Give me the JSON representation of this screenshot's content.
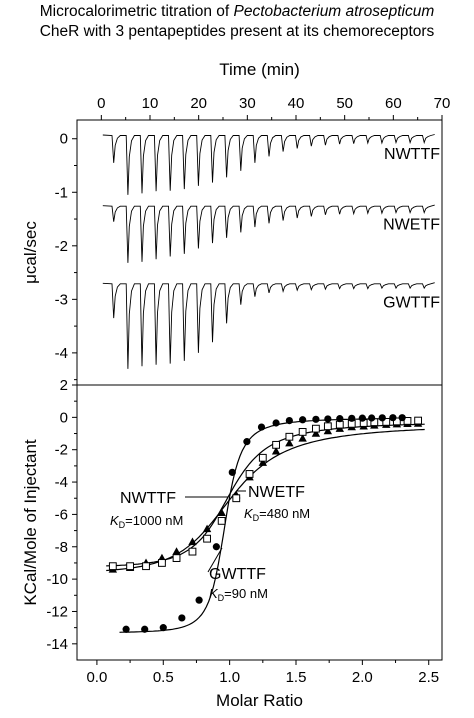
{
  "title": {
    "line1_prefix": "Microcalorimetric titration of ",
    "line1_italic": "Pectobacterium atrosepticum",
    "line2": "CheR with 3 pentapeptides present at its chemoreceptors"
  },
  "chart_data": [
    {
      "type": "line",
      "panel": "top",
      "description_text": "raw ITC thermograms",
      "xlabel": "Time (min)",
      "ylabel": "μcal/sec",
      "xlim": [
        -5,
        70
      ],
      "ylim": [
        -4.6,
        0.35
      ],
      "xticks": [
        0,
        10,
        20,
        30,
        40,
        50,
        60,
        70
      ],
      "yticks": [
        0,
        -1,
        -2,
        -3,
        -4
      ],
      "injection_times_min": [
        2.3,
        5.2,
        8.1,
        11.0,
        13.9,
        16.8,
        19.7,
        22.6,
        25.5,
        28.4,
        31.3,
        34.2,
        37.1,
        40.0,
        42.9,
        45.8,
        48.7,
        51.6,
        54.5,
        57.4,
        60.3,
        63.2,
        66.1
      ],
      "series": [
        {
          "name": "NWTTF",
          "baseline": 0.05,
          "peak_minima": [
            -0.45,
            -1.05,
            -1.02,
            -0.98,
            -0.97,
            -0.94,
            -0.88,
            -0.82,
            -0.72,
            -0.6,
            -0.45,
            -0.33,
            -0.24,
            -0.18,
            -0.14,
            -0.12,
            -0.1,
            -0.09,
            -0.08,
            -0.08,
            -0.07,
            -0.07,
            -0.07
          ]
        },
        {
          "name": "NWETF",
          "baseline": -1.27,
          "peak_minima": [
            -1.55,
            -2.32,
            -2.3,
            -2.25,
            -2.2,
            -2.15,
            -2.05,
            -1.95,
            -1.85,
            -1.75,
            -1.65,
            -1.58,
            -1.53,
            -1.48,
            -1.45,
            -1.42,
            -1.41,
            -1.4,
            -1.39,
            -1.39,
            -1.38,
            -1.38,
            -1.38
          ]
        },
        {
          "name": "GWTTF",
          "baseline": -2.72,
          "peak_minima": [
            -3.35,
            -4.3,
            -4.25,
            -4.22,
            -4.2,
            -4.15,
            -4.0,
            -3.8,
            -3.45,
            -3.1,
            -2.95,
            -2.88,
            -2.85,
            -2.83,
            -2.82,
            -2.81,
            -2.8,
            -2.8,
            -2.8,
            -2.79,
            -2.79,
            -2.79,
            -2.79
          ]
        }
      ]
    },
    {
      "type": "scatter",
      "panel": "bottom",
      "description_text": "integrated heats with fitted curves",
      "xlabel": "Molar Ratio",
      "ylabel": "KCal/Mole of Injectant",
      "xlim": [
        -0.15,
        2.6
      ],
      "ylim": [
        -15,
        2
      ],
      "xticks": [
        "0.0",
        "0.5",
        "1.0",
        "1.5",
        "2.0",
        "2.5"
      ],
      "yticks": [
        "2",
        "0",
        "-2",
        "-4",
        "-6",
        "-8",
        "-10",
        "-12",
        "-14"
      ],
      "series": [
        {
          "name": "NWTTF",
          "kd_label_prefix": "K",
          "kd_label_sub": "D",
          "kd_label_suffix": "=1000 nM",
          "marker": "filled-triangle",
          "fit": {
            "n": 0.97,
            "dh": -9.2,
            "ka": 1000000.0,
            "offset": -0.3
          },
          "x": [
            0.12,
            0.25,
            0.37,
            0.49,
            0.6,
            0.72,
            0.83,
            0.94,
            1.05,
            1.15,
            1.25,
            1.35,
            1.45,
            1.55,
            1.65,
            1.74,
            1.83,
            1.92,
            2.01,
            2.09,
            2.18,
            2.26,
            2.34,
            2.42
          ],
          "y": [
            -9.4,
            -9.3,
            -9.0,
            -8.7,
            -8.3,
            -7.7,
            -6.9,
            -5.9,
            -4.8,
            -3.7,
            -2.8,
            -2.1,
            -1.6,
            -1.3,
            -1.0,
            -0.85,
            -0.7,
            -0.6,
            -0.55,
            -0.5,
            -0.45,
            -0.42,
            -0.4,
            -0.38
          ]
        },
        {
          "name": "NWETF",
          "kd_label_prefix": "K",
          "kd_label_sub": "D",
          "kd_label_suffix": "=480 nM",
          "marker": "open-square",
          "fit": {
            "n": 0.98,
            "dh": -9.0,
            "ka": 2083333.0,
            "offset": -0.2
          },
          "x": [
            0.12,
            0.25,
            0.37,
            0.49,
            0.6,
            0.72,
            0.83,
            0.94,
            1.05,
            1.15,
            1.25,
            1.35,
            1.45,
            1.55,
            1.65,
            1.74,
            1.83,
            1.92,
            2.01,
            2.09,
            2.18,
            2.26,
            2.34,
            2.42
          ],
          "y": [
            -9.2,
            -9.2,
            -9.2,
            -9.0,
            -8.7,
            -8.3,
            -7.5,
            -6.4,
            -5.0,
            -3.5,
            -2.5,
            -1.7,
            -1.2,
            -0.9,
            -0.7,
            -0.55,
            -0.45,
            -0.4,
            -0.35,
            -0.3,
            -0.28,
            -0.25,
            -0.22,
            -0.2
          ]
        },
        {
          "name": "GWTTF",
          "kd_label_prefix": "K",
          "kd_label_sub": "D",
          "kd_label_suffix": "=90 nM",
          "marker": "filled-circle",
          "fit": {
            "n": 0.96,
            "dh": -13.3,
            "ka": 11111111.0,
            "offset": 0.0
          },
          "x": [
            0.22,
            0.36,
            0.5,
            0.64,
            0.77,
            0.9,
            1.02,
            1.13,
            1.24,
            1.35,
            1.45,
            1.55,
            1.65,
            1.74,
            1.83,
            1.92,
            2.0,
            2.07,
            2.15,
            2.23,
            2.3
          ],
          "y": [
            -13.1,
            -13.1,
            -13.0,
            -12.4,
            -11.3,
            -8.0,
            -3.4,
            -1.5,
            -0.6,
            -0.35,
            -0.2,
            -0.15,
            -0.12,
            -0.1,
            -0.08,
            -0.06,
            -0.05,
            -0.04,
            -0.03,
            -0.02,
            -0.02
          ]
        }
      ]
    }
  ]
}
